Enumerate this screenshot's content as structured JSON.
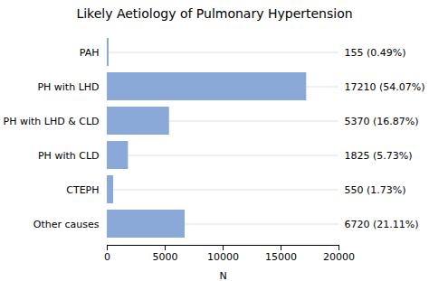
{
  "chart_data": {
    "type": "bar",
    "orientation": "horizontal",
    "title": "Likely Aetiology of Pulmonary Hypertension",
    "categories": [
      "PAH",
      "PH with LHD",
      "PH with LHD & CLD",
      "PH with CLD",
      "CTEPH",
      "Other causes"
    ],
    "values": [
      155,
      17210,
      5370,
      1825,
      550,
      6720
    ],
    "value_labels": [
      "155 (0.49%)",
      "17210 (54.07%)",
      "5370 (16.87%)",
      "1825 (5.73%)",
      "550 (1.73%)",
      "6720 (21.11%)"
    ],
    "data_labels": true,
    "color": "#8aa8d8",
    "xlabel": "N",
    "xlim": [
      0,
      20000
    ],
    "xticks": [
      0,
      5000,
      10000,
      15000,
      20000
    ],
    "grid": "y"
  }
}
